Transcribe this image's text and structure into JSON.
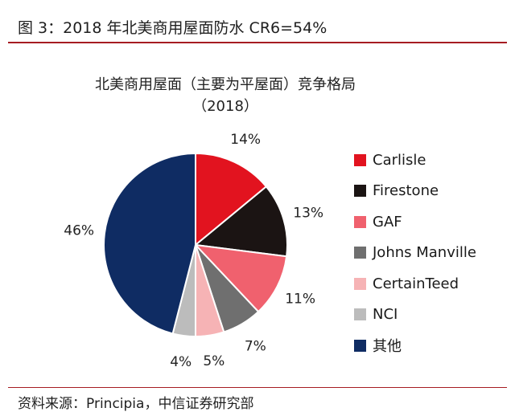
{
  "figure_title": "图 3：2018 年北美商用屋面防水 CR6=54%",
  "source": "资料来源：Principia，中信证券研究部",
  "chart_data": {
    "type": "pie",
    "title": "北美商用屋面（主要为平屋面）竞争格局",
    "subtitle": "（2018）",
    "legend_position": "right",
    "slices": [
      {
        "name": "Carlisle",
        "value": 14,
        "label": "14%",
        "color": "#e2131f"
      },
      {
        "name": "Firestone",
        "value": 13,
        "label": "13%",
        "color": "#1b1413"
      },
      {
        "name": "GAF",
        "value": 11,
        "label": "11%",
        "color": "#f0616e"
      },
      {
        "name": "Johns Manville",
        "value": 7,
        "label": "7%",
        "color": "#6f6f6f"
      },
      {
        "name": "CertainTeed",
        "value": 5,
        "label": "5%",
        "color": "#f6b3b5"
      },
      {
        "name": "NCI",
        "value": 4,
        "label": "4%",
        "color": "#bcbcbc"
      },
      {
        "name": "其他",
        "value": 46,
        "label": "46%",
        "color": "#0f2c63"
      }
    ]
  }
}
